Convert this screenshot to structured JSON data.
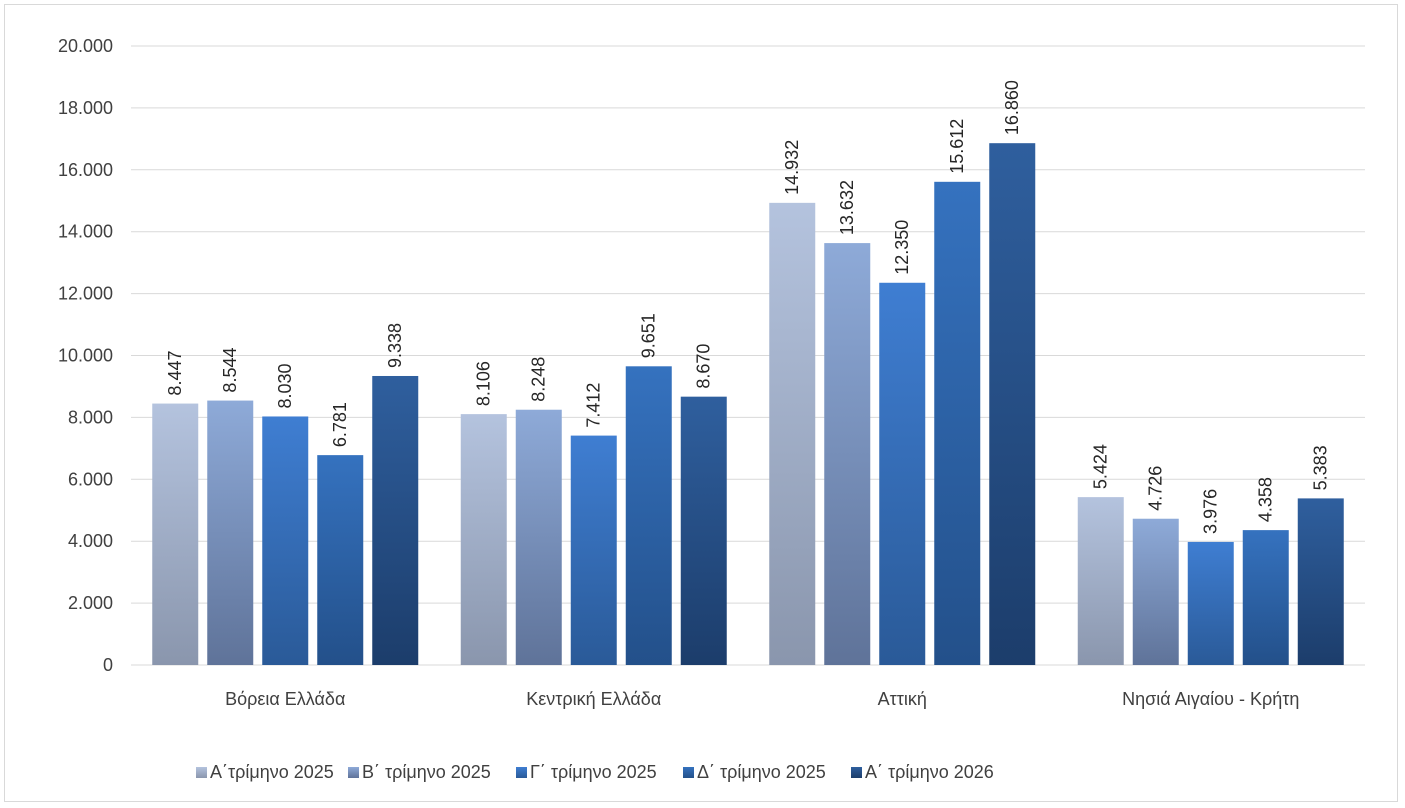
{
  "chart_data": {
    "type": "bar",
    "title": "",
    "xlabel": "",
    "ylabel": "",
    "categories": [
      "Βόρεια Ελλάδα",
      "Κεντρική Ελλάδα",
      "Αττική",
      "Νησιά Αιγαίου - Κρήτη"
    ],
    "series": [
      {
        "name": "Α΄τρίμηνο 2025",
        "values": [
          8447,
          8106,
          14932,
          5424
        ],
        "labels": [
          "8.447",
          "8.106",
          "14.932",
          "5.424"
        ],
        "color_top": "#b4c3de",
        "color_bottom": "#8a96ad"
      },
      {
        "name": "Β΄ τρίμηνο 2025",
        "values": [
          8544,
          8248,
          13632,
          4726
        ],
        "labels": [
          "8.544",
          "8.248",
          "13.632",
          "4.726"
        ],
        "color_top": "#8eaad8",
        "color_bottom": "#5f7399"
      },
      {
        "name": "Γ΄ τρίμηνο 2025",
        "values": [
          8030,
          7412,
          12350,
          3976
        ],
        "labels": [
          "8.030",
          "7.412",
          "12.350",
          "3.976"
        ],
        "color_top": "#3f7ed2",
        "color_bottom": "#2a5a98"
      },
      {
        "name": "Δ΄ τρίμηνο 2025",
        "values": [
          6781,
          9651,
          15612,
          4358
        ],
        "labels": [
          "6.781",
          "9.651",
          "15.612",
          "4.358"
        ],
        "color_top": "#3572bf",
        "color_bottom": "#23508a"
      },
      {
        "name": "Α΄ τρίμηνο 2026",
        "values": [
          9338,
          8670,
          16860,
          5383
        ],
        "labels": [
          "9.338",
          "8.670",
          "16.860",
          "5.383"
        ],
        "color_top": "#2f5f9e",
        "color_bottom": "#1c3d6b"
      }
    ],
    "ylim": [
      0,
      20000
    ],
    "yticks": [
      {
        "value": 0,
        "label": "0"
      },
      {
        "value": 2000,
        "label": "2.000"
      },
      {
        "value": 4000,
        "label": "4.000"
      },
      {
        "value": 6000,
        "label": "6.000"
      },
      {
        "value": 8000,
        "label": "8.000"
      },
      {
        "value": 10000,
        "label": "10.000"
      },
      {
        "value": 12000,
        "label": "12.000"
      },
      {
        "value": 14000,
        "label": "14.000"
      },
      {
        "value": 16000,
        "label": "16.000"
      },
      {
        "value": 18000,
        "label": "18.000"
      },
      {
        "value": 20000,
        "label": "20.000"
      }
    ],
    "grid": true,
    "legend_position": "bottom",
    "gridline_color": "#d9d9d9",
    "axis_color": "#d9d9d9"
  }
}
